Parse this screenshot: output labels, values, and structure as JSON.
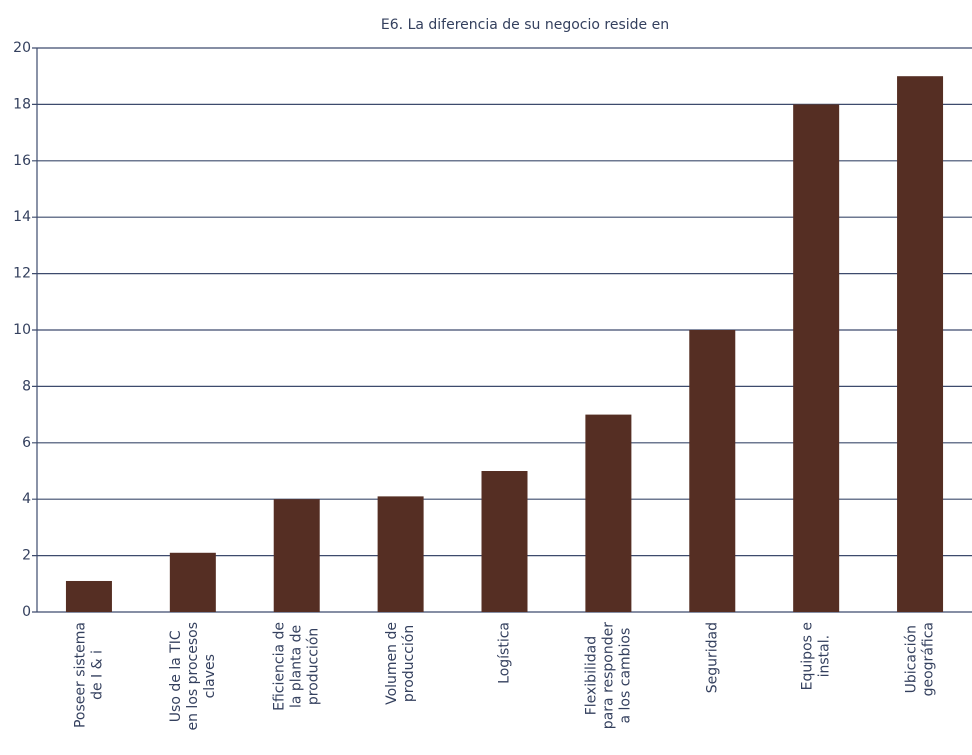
{
  "chart_data": {
    "type": "bar",
    "title": "E6. La diferencia de su negocio reside en",
    "categories": [
      "Poseer sistema\nde I & i",
      "Uso de la TIC\nen los procesos\nclaves",
      "Eficiencia de\nla planta de\nproducción",
      "Volumen de\nproducción",
      "Logística",
      "Flexibilidad\npara responder\na los cambios",
      "Seguridad",
      "Equipos e\ninstal.",
      "Ubicación\ngeográfica"
    ],
    "values": [
      1.1,
      2.1,
      4,
      4.1,
      5,
      7,
      10,
      18,
      19
    ],
    "color": "#552e23",
    "ylim": [
      0,
      20
    ],
    "yticks": [
      0,
      2,
      4,
      6,
      8,
      10,
      12,
      14,
      16,
      18,
      20
    ],
    "grid": true
  }
}
